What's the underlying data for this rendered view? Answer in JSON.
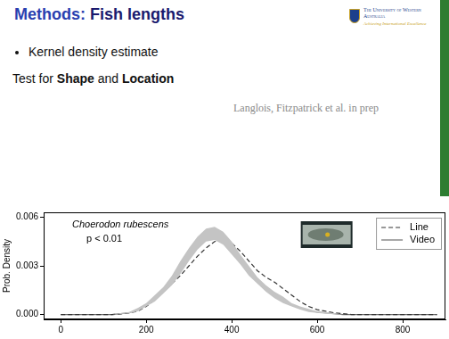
{
  "slide": {
    "title": {
      "lead": "Methods:",
      "text": "Fish lengths"
    },
    "bullets": [
      "Kernel density estimate"
    ],
    "test_line": [
      "Test for ",
      "Shape",
      " and ",
      "Location"
    ],
    "citation": "Langlois, Fitzpatrick et al. in prep",
    "logo": [
      "The University of Western Australia",
      "Achieving International Excellence"
    ]
  },
  "chart_data": {
    "type": "line",
    "y_label": "Prob. Density",
    "annotations": [
      "Choerodon rubescens",
      "p < 0.01"
    ],
    "x": [
      0,
      20,
      40,
      60,
      80,
      100,
      120,
      140,
      160,
      180,
      200,
      220,
      240,
      260,
      280,
      300,
      320,
      340,
      360,
      380,
      400,
      420,
      440,
      460,
      480,
      500,
      520,
      540,
      560,
      580,
      600,
      620,
      640,
      660,
      680,
      700,
      720,
      740,
      760,
      780,
      800,
      820,
      840,
      860,
      880
    ],
    "series": [
      {
        "name": "Line",
        "color": "#333333",
        "line_style": "dashed",
        "values": [
          0,
          0,
          0,
          0,
          0,
          0,
          0,
          3e-05,
          0.0001,
          0.0002,
          0.0005,
          0.0009,
          0.0014,
          0.0019,
          0.0024,
          0.003,
          0.0036,
          0.0041,
          0.0045,
          0.0046,
          0.0044,
          0.0039,
          0.0033,
          0.0027,
          0.0023,
          0.002,
          0.0016,
          0.0012,
          0.0008,
          0.0005,
          0.0003,
          0.0002,
          0.0001,
          5e-05,
          0,
          0,
          0,
          0,
          0,
          0,
          0,
          0,
          0,
          0,
          0
        ]
      },
      {
        "name": "Video",
        "color": "#6e6e6e",
        "line_style": "solid",
        "values": [
          0,
          0,
          0,
          0,
          0,
          0,
          0,
          5e-05,
          0.0001,
          0.0003,
          0.0006,
          0.001,
          0.0015,
          0.0021,
          0.0029,
          0.0037,
          0.0044,
          0.0049,
          0.005,
          0.0047,
          0.0041,
          0.0034,
          0.0027,
          0.0021,
          0.0016,
          0.0012,
          0.0009,
          0.0006,
          0.0004,
          0.00025,
          0.00015,
          0.0001,
          5e-05,
          0,
          0,
          0,
          0,
          0,
          0,
          0,
          0,
          0,
          0,
          0,
          0
        ]
      }
    ],
    "band": {
      "color": "#c4c4c4",
      "lower": [
        0,
        0,
        0,
        0,
        0,
        0,
        0,
        3e-05,
        7e-05,
        0.0002,
        0.0005,
        0.0008,
        0.0013,
        0.0018,
        0.0025,
        0.0033,
        0.004,
        0.0045,
        0.0046,
        0.0043,
        0.0037,
        0.0031,
        0.0024,
        0.0019,
        0.0014,
        0.001,
        0.0007,
        0.0005,
        0.0003,
        0.00015,
        0.0001,
        5e-05,
        2e-05,
        0,
        0,
        0,
        0,
        0,
        0,
        0,
        0,
        0,
        0,
        0,
        0
      ],
      "upper": [
        0,
        0,
        0,
        0,
        0,
        0,
        0,
        8e-05,
        0.00015,
        0.0004,
        0.0007,
        0.0012,
        0.0017,
        0.0024,
        0.0033,
        0.0041,
        0.0048,
        0.0053,
        0.0054,
        0.0051,
        0.0045,
        0.0037,
        0.003,
        0.0023,
        0.0018,
        0.0014,
        0.0011,
        0.0007,
        0.0005,
        0.00035,
        0.0002,
        0.00015,
        8e-05,
        0,
        0,
        0,
        0,
        0,
        0,
        0,
        0,
        0,
        0,
        0,
        0
      ]
    },
    "xlim": [
      -40,
      900
    ],
    "xticks": [
      0,
      200,
      400,
      600,
      800
    ],
    "ylim": [
      -0.0003,
      0.0063
    ],
    "yticks": [
      {
        "value": 0,
        "label": "0.000"
      },
      0.003,
      0.006
    ],
    "grid": false,
    "legend": "top right"
  }
}
